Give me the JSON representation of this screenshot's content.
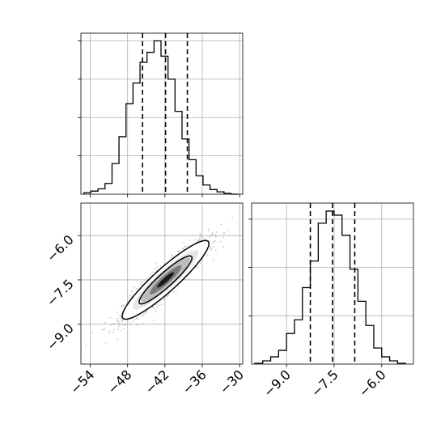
{
  "chart_data": [
    {
      "type": "histogram",
      "panel": "top-left",
      "variable_index": 0,
      "xlim": [
        -55.5,
        -29.5
      ],
      "bin_edges": [
        -55.0,
        -53.88,
        -52.75,
        -51.63,
        -50.5,
        -49.38,
        -48.25,
        -47.13,
        -46.0,
        -44.88,
        -43.75,
        -42.63,
        -41.5,
        -40.38,
        -39.25,
        -38.13,
        -37.0,
        -35.88,
        -34.75,
        -33.63,
        -32.5,
        -31.38,
        -30.25
      ],
      "counts": [
        2,
        4,
        7,
        14,
        40,
        75,
        118,
        145,
        172,
        185,
        200,
        180,
        150,
        108,
        72,
        45,
        24,
        12,
        6,
        3,
        1,
        0
      ],
      "ylim": [
        0,
        210
      ],
      "quantile_lines": [
        -45.6,
        -41.9,
        -38.4
      ],
      "grid": true,
      "y_tick_labels_shown": false
    },
    {
      "type": "scatter",
      "panel": "bottom-left",
      "subtype": "2d-density-with-contours",
      "xlim": [
        -55.5,
        -29.5
      ],
      "ylim": [
        -10.35,
        -4.9
      ],
      "x_ticks": [
        -54,
        -48,
        -42,
        -36,
        -30
      ],
      "y_ticks": [
        -6.0,
        -7.5,
        -9.0
      ],
      "x_tick_labels": [
        "−54",
        "−48",
        "−42",
        "−36",
        "−30"
      ],
      "y_tick_labels": [
        "−6.0",
        "−7.5",
        "−9.0"
      ],
      "center": [
        -41.9,
        -7.5
      ],
      "correlation": 0.92,
      "sigma": [
        3.4,
        0.65
      ],
      "contours": [
        "inner",
        "outer"
      ],
      "grid": true
    },
    {
      "type": "histogram",
      "panel": "bottom-right",
      "variable_index": 1,
      "xlim": [
        -10.1,
        -5.0
      ],
      "bin_edges": [
        -10.0,
        -9.75,
        -9.5,
        -9.25,
        -9.0,
        -8.75,
        -8.5,
        -8.25,
        -8.0,
        -7.75,
        -7.5,
        -7.25,
        -7.0,
        -6.75,
        -6.5,
        -6.25,
        -6.0,
        -5.75,
        -5.5,
        -5.25
      ],
      "counts": [
        1,
        4,
        9,
        17,
        38,
        55,
        95,
        128,
        175,
        190,
        185,
        160,
        118,
        78,
        48,
        20,
        9,
        4,
        1
      ],
      "ylim": [
        0,
        200
      ],
      "quantile_lines": [
        -8.25,
        -7.55,
        -6.85
      ],
      "x_ticks": [
        -9.0,
        -7.5,
        -6.0
      ],
      "x_tick_labels": [
        "−9.0",
        "−7.5",
        "−6.0"
      ],
      "grid": true,
      "y_tick_labels_shown": false
    }
  ]
}
